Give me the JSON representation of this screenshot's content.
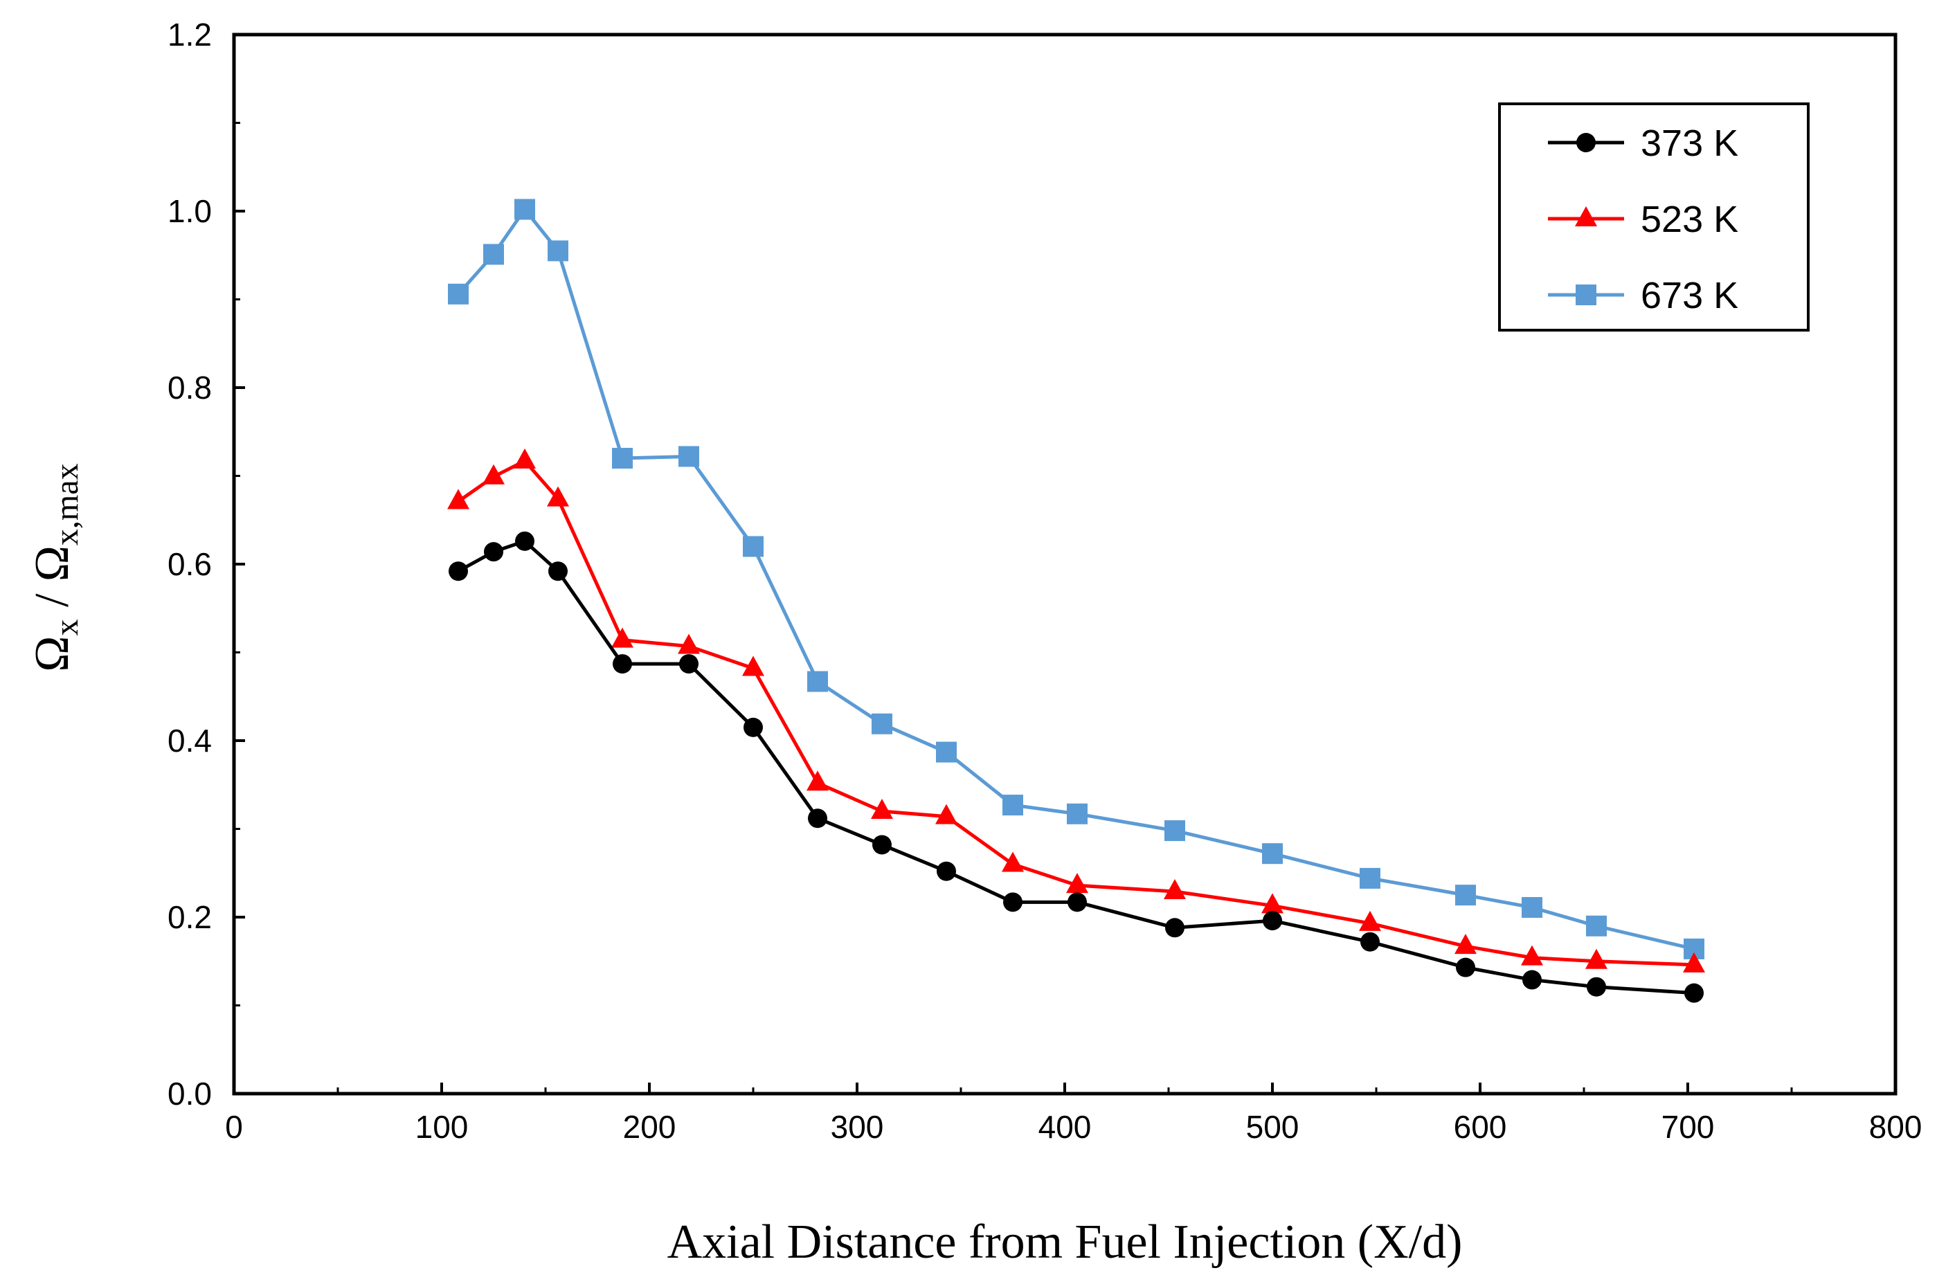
{
  "chart_data": {
    "type": "line",
    "title": "",
    "xlabel": "Axial Distance from Fuel Injection (X/d)",
    "ylabel": {
      "parts": [
        {
          "text": "Ω",
          "sub": false
        },
        {
          "text": "x",
          "sub": true
        },
        {
          "text": " / Ω",
          "sub": false
        },
        {
          "text": "x,max",
          "sub": true
        }
      ]
    },
    "xlim": [
      0,
      800
    ],
    "ylim": [
      0,
      1.2
    ],
    "xticks": [
      "0",
      "100",
      "200",
      "300",
      "400",
      "500",
      "600",
      "700",
      "800"
    ],
    "yticks": [
      "0.0",
      "0.2",
      "0.4",
      "0.6",
      "0.8",
      "1.0",
      "1.2"
    ],
    "grid": false,
    "legend_position": "top-right",
    "series": [
      {
        "name": "373 K",
        "color": "#000000",
        "marker": "circle",
        "x": [
          108,
          125,
          140,
          156,
          187,
          219,
          250,
          281,
          312,
          343,
          375,
          406,
          453,
          500,
          547,
          593,
          625,
          656,
          703
        ],
        "y": [
          0.592,
          0.614,
          0.626,
          0.592,
          0.487,
          0.487,
          0.415,
          0.312,
          0.282,
          0.252,
          0.217,
          0.217,
          0.188,
          0.196,
          0.172,
          0.143,
          0.129,
          0.121,
          0.114
        ]
      },
      {
        "name": "523 K",
        "color": "#ff0000",
        "marker": "triangle",
        "x": [
          108,
          125,
          140,
          156,
          187,
          219,
          250,
          281,
          312,
          343,
          375,
          406,
          453,
          500,
          547,
          593,
          625,
          656,
          703
        ],
        "y": [
          0.671,
          0.699,
          0.717,
          0.674,
          0.514,
          0.507,
          0.482,
          0.352,
          0.32,
          0.314,
          0.26,
          0.236,
          0.229,
          0.213,
          0.193,
          0.167,
          0.154,
          0.15,
          0.146
        ]
      },
      {
        "name": "673 K",
        "color": "#5b9bd5",
        "marker": "square",
        "x": [
          108,
          125,
          140,
          156,
          187,
          219,
          250,
          281,
          312,
          343,
          375,
          406,
          453,
          500,
          547,
          593,
          625,
          656,
          703
        ],
        "y": [
          0.906,
          0.951,
          1.002,
          0.955,
          0.72,
          0.722,
          0.62,
          0.467,
          0.419,
          0.387,
          0.327,
          0.317,
          0.298,
          0.272,
          0.244,
          0.225,
          0.211,
          0.19,
          0.164
        ]
      }
    ]
  }
}
